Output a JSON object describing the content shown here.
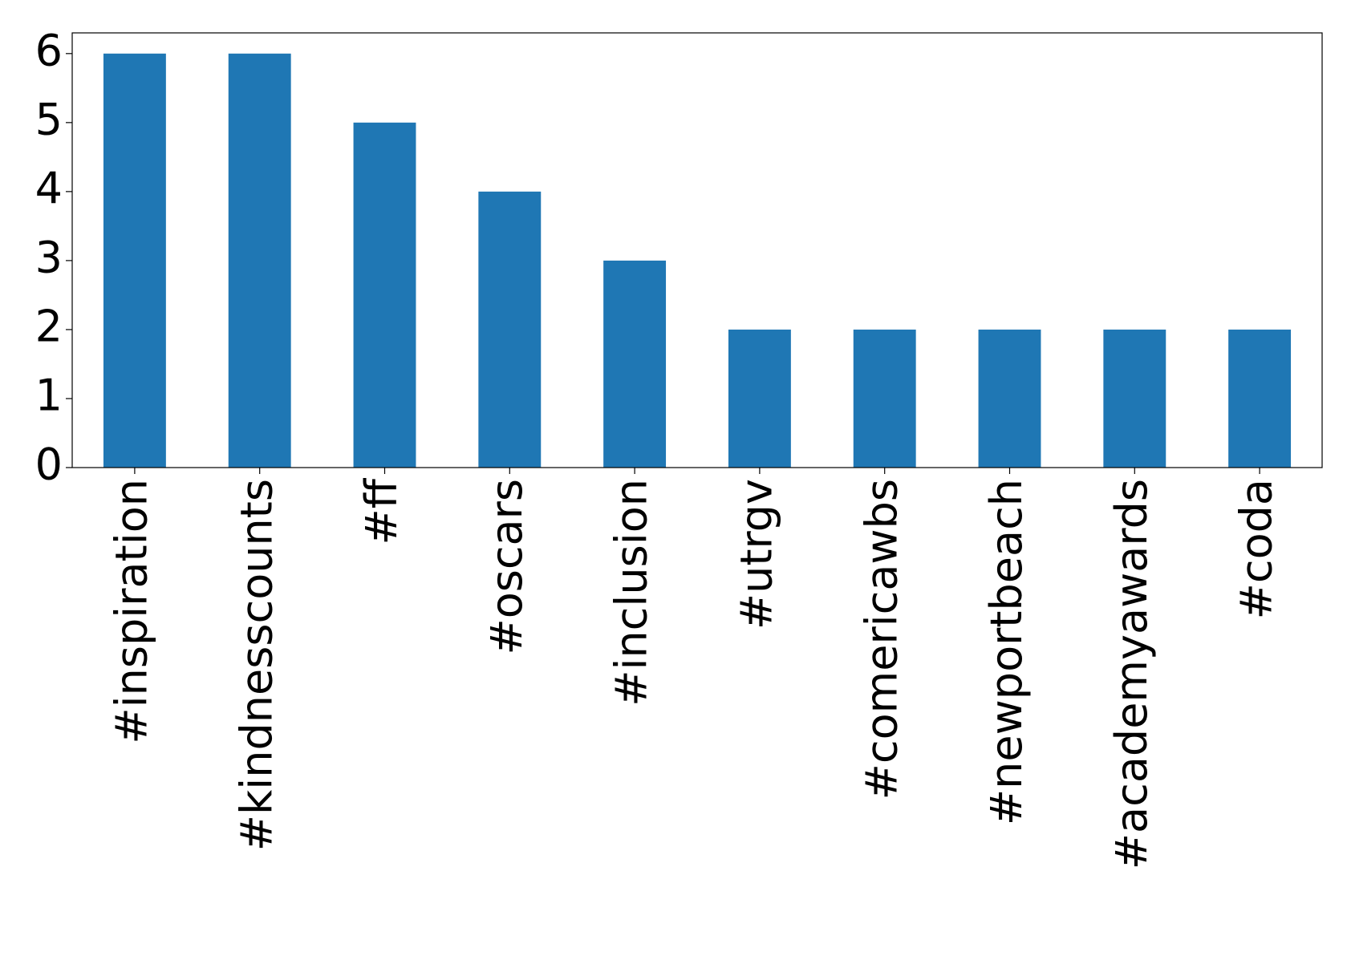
{
  "chart_data": {
    "type": "bar",
    "categories": [
      "#inspiration",
      "#kindnesscounts",
      "#ff",
      "#oscars",
      "#inclusion",
      "#utrgv",
      "#comericawbs",
      "#newportbeach",
      "#academyawards",
      "#coda"
    ],
    "values": [
      6,
      6,
      5,
      4,
      3,
      2,
      2,
      2,
      2,
      2
    ],
    "color": "#1f77b4",
    "ylim": [
      0,
      6.3
    ],
    "yticks": [
      0,
      1,
      2,
      3,
      4,
      5,
      6
    ],
    "grid": false
  }
}
